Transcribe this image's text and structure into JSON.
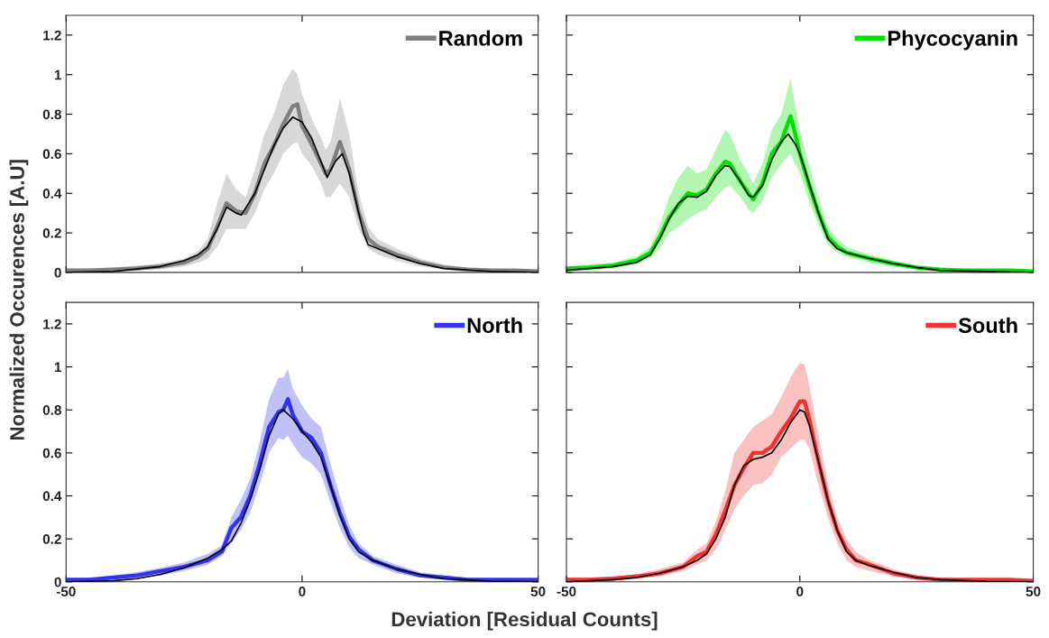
{
  "chart_data": [
    {
      "type": "line",
      "ylabel": "Normalized Occurences [A.U]",
      "xlim": [
        -50,
        50
      ],
      "ylim": [
        0,
        1.3
      ],
      "xticks": [
        -50,
        0,
        50
      ],
      "yticks": [
        0,
        0.2,
        0.4,
        0.6,
        0.8,
        1,
        1.2
      ],
      "tick_labels": "y",
      "legend": "top right",
      "series": [
        {
          "name": "Random",
          "color": "#7f7f7f",
          "x": [
            -50,
            -45,
            -40,
            -35,
            -30,
            -25,
            -22,
            -20,
            -18,
            -16,
            -14,
            -12,
            -10,
            -8,
            -6,
            -4,
            -2,
            -1,
            0,
            2,
            4,
            5,
            6,
            8,
            10,
            12,
            14,
            16,
            20,
            25,
            30,
            35,
            40,
            45,
            50
          ],
          "values": [
            0.01,
            0.01,
            0.015,
            0.02,
            0.03,
            0.05,
            0.08,
            0.12,
            0.23,
            0.35,
            0.31,
            0.3,
            0.4,
            0.55,
            0.64,
            0.75,
            0.84,
            0.85,
            0.74,
            0.65,
            0.55,
            0.5,
            0.52,
            0.66,
            0.52,
            0.3,
            0.17,
            0.13,
            0.09,
            0.05,
            0.025,
            0.015,
            0.01,
            0.01,
            0.005
          ],
          "lower": [
            0,
            0,
            0,
            0.01,
            0.015,
            0.03,
            0.05,
            0.07,
            0.13,
            0.22,
            0.22,
            0.22,
            0.3,
            0.42,
            0.5,
            0.6,
            0.65,
            0.66,
            0.6,
            0.54,
            0.45,
            0.38,
            0.38,
            0.45,
            0.38,
            0.22,
            0.12,
            0.09,
            0.06,
            0.03,
            0.015,
            0.005,
            0,
            0,
            0
          ],
          "upper": [
            0.02,
            0.02,
            0.025,
            0.035,
            0.045,
            0.07,
            0.11,
            0.17,
            0.35,
            0.5,
            0.42,
            0.38,
            0.52,
            0.7,
            0.8,
            0.95,
            1.03,
            1.0,
            0.9,
            0.78,
            0.68,
            0.62,
            0.66,
            0.88,
            0.7,
            0.4,
            0.23,
            0.17,
            0.12,
            0.07,
            0.04,
            0.025,
            0.02,
            0.015,
            0.01
          ]
        },
        {
          "type": "line",
          "color": "#000000",
          "x": [
            -50,
            -40,
            -30,
            -25,
            -22,
            -20,
            -18,
            -16,
            -14,
            -12.9,
            -10,
            -8,
            -6,
            -4,
            -2,
            0,
            2,
            4,
            5,
            5.3,
            7,
            8.5,
            10,
            12,
            13,
            14,
            16,
            20,
            25,
            30,
            40,
            50
          ],
          "values": [
            0,
            0.005,
            0.03,
            0.06,
            0.09,
            0.13,
            0.22,
            0.33,
            0.3,
            0.29,
            0.4,
            0.52,
            0.64,
            0.73,
            0.785,
            0.76,
            0.68,
            0.56,
            0.5,
            0.48,
            0.56,
            0.6,
            0.5,
            0.3,
            0.2,
            0.14,
            0.12,
            0.08,
            0.045,
            0.02,
            0.005,
            0
          ]
        }
      ]
    },
    {
      "type": "line",
      "xlim": [
        -50,
        50
      ],
      "ylim": [
        0,
        1.3
      ],
      "xticks": [
        -50,
        0,
        50
      ],
      "yticks": [
        0,
        0.2,
        0.4,
        0.6,
        0.8,
        1,
        1.2
      ],
      "tick_labels": false,
      "legend": "top right",
      "series": [
        {
          "name": "Phycocyanin",
          "color": "#00e000",
          "x": [
            -50,
            -45,
            -40,
            -35,
            -32,
            -30,
            -28,
            -26,
            -24,
            -22,
            -20,
            -18,
            -16,
            -15,
            -13,
            -11,
            -10,
            -8,
            -6,
            -4,
            -2,
            -1,
            0,
            2,
            4,
            6,
            8,
            10,
            15,
            20,
            25,
            30,
            35,
            40,
            45,
            50
          ],
          "values": [
            0.02,
            0.025,
            0.035,
            0.06,
            0.1,
            0.18,
            0.28,
            0.34,
            0.4,
            0.39,
            0.42,
            0.5,
            0.56,
            0.55,
            0.47,
            0.4,
            0.37,
            0.45,
            0.6,
            0.66,
            0.79,
            0.7,
            0.6,
            0.44,
            0.3,
            0.18,
            0.13,
            0.1,
            0.07,
            0.045,
            0.025,
            0.015,
            0.01,
            0.01,
            0.01,
            0.005
          ],
          "lower": [
            0.005,
            0.01,
            0.02,
            0.04,
            0.07,
            0.12,
            0.2,
            0.23,
            0.27,
            0.3,
            0.32,
            0.38,
            0.43,
            0.44,
            0.39,
            0.32,
            0.3,
            0.36,
            0.48,
            0.55,
            0.6,
            0.55,
            0.5,
            0.36,
            0.24,
            0.14,
            0.1,
            0.08,
            0.05,
            0.03,
            0.015,
            0.005,
            0,
            0,
            0,
            0
          ],
          "upper": [
            0.03,
            0.04,
            0.05,
            0.08,
            0.13,
            0.24,
            0.38,
            0.48,
            0.54,
            0.5,
            0.52,
            0.62,
            0.72,
            0.7,
            0.58,
            0.5,
            0.45,
            0.55,
            0.72,
            0.8,
            0.98,
            0.85,
            0.72,
            0.54,
            0.38,
            0.23,
            0.17,
            0.13,
            0.09,
            0.06,
            0.035,
            0.025,
            0.02,
            0.015,
            0.015,
            0.01
          ]
        },
        {
          "type": "line",
          "color": "#000000",
          "x": [
            -50,
            -40,
            -35,
            -32,
            -30,
            -28,
            -26,
            -24,
            -22,
            -20,
            -18,
            -16,
            -15,
            -13,
            -11,
            -10,
            -8,
            -6,
            -4,
            -2.5,
            -1,
            0,
            2,
            4,
            6,
            8,
            10,
            15,
            20,
            25,
            30,
            40,
            50
          ],
          "values": [
            0.01,
            0.03,
            0.05,
            0.09,
            0.17,
            0.27,
            0.35,
            0.385,
            0.38,
            0.41,
            0.49,
            0.54,
            0.535,
            0.47,
            0.39,
            0.38,
            0.44,
            0.57,
            0.66,
            0.7,
            0.65,
            0.6,
            0.45,
            0.3,
            0.17,
            0.12,
            0.1,
            0.07,
            0.045,
            0.025,
            0.01,
            0.005,
            0
          ]
        }
      ]
    },
    {
      "type": "line",
      "xlabel": "Deviation [Residual Counts]",
      "xlim": [
        -50,
        50
      ],
      "ylim": [
        0,
        1.3
      ],
      "xticks": [
        -50,
        0,
        50
      ],
      "yticks": [
        0,
        0.2,
        0.4,
        0.6,
        0.8,
        1,
        1.2
      ],
      "legend": "top right",
      "series": [
        {
          "name": "North",
          "color": "#3333ee",
          "x": [
            -50,
            -45,
            -40,
            -35,
            -30,
            -25,
            -20,
            -17,
            -15,
            -13,
            -11,
            -9,
            -7,
            -5,
            -4,
            -3,
            -2,
            0,
            2,
            4,
            6,
            8,
            10,
            12,
            15,
            20,
            25,
            30,
            35,
            40,
            45,
            50
          ],
          "values": [
            0.01,
            0.01,
            0.02,
            0.03,
            0.05,
            0.07,
            0.1,
            0.14,
            0.25,
            0.3,
            0.4,
            0.55,
            0.72,
            0.79,
            0.8,
            0.85,
            0.78,
            0.7,
            0.67,
            0.6,
            0.45,
            0.32,
            0.21,
            0.15,
            0.1,
            0.06,
            0.03,
            0.02,
            0.01,
            0.01,
            0.01,
            0.01
          ],
          "lower": [
            0,
            0,
            0.005,
            0.015,
            0.03,
            0.05,
            0.08,
            0.12,
            0.18,
            0.24,
            0.32,
            0.45,
            0.6,
            0.67,
            0.66,
            0.68,
            0.64,
            0.58,
            0.55,
            0.5,
            0.37,
            0.25,
            0.16,
            0.11,
            0.08,
            0.04,
            0.02,
            0.01,
            0,
            0,
            0,
            0
          ],
          "upper": [
            0.02,
            0.02,
            0.03,
            0.045,
            0.065,
            0.09,
            0.13,
            0.17,
            0.3,
            0.38,
            0.48,
            0.65,
            0.85,
            0.95,
            0.95,
            0.99,
            0.9,
            0.82,
            0.76,
            0.72,
            0.55,
            0.4,
            0.26,
            0.18,
            0.12,
            0.08,
            0.045,
            0.03,
            0.02,
            0.015,
            0.015,
            0.015
          ]
        },
        {
          "type": "line",
          "color": "#000000",
          "x": [
            -50,
            -40,
            -35,
            -30,
            -25,
            -20,
            -17,
            -15,
            -13,
            -11,
            -9,
            -7,
            -5,
            -4,
            -2,
            0,
            2,
            4,
            6,
            8,
            10,
            12,
            15,
            20,
            25,
            30,
            40,
            50
          ],
          "values": [
            0,
            0.005,
            0.015,
            0.035,
            0.065,
            0.11,
            0.15,
            0.19,
            0.27,
            0.38,
            0.52,
            0.68,
            0.78,
            0.8,
            0.76,
            0.7,
            0.65,
            0.58,
            0.45,
            0.31,
            0.2,
            0.14,
            0.1,
            0.06,
            0.035,
            0.015,
            0.003,
            0
          ]
        }
      ]
    },
    {
      "type": "line",
      "xlim": [
        -50,
        50
      ],
      "ylim": [
        0,
        1.3
      ],
      "xticks": [
        -50,
        0,
        50
      ],
      "yticks": [
        0,
        0.2,
        0.4,
        0.6,
        0.8,
        1,
        1.2
      ],
      "tick_labels": "x",
      "legend": "top right",
      "series": [
        {
          "name": "South",
          "color": "#ee3333",
          "x": [
            -50,
            -45,
            -40,
            -35,
            -30,
            -25,
            -22,
            -20,
            -18,
            -16,
            -14,
            -12,
            -10,
            -8,
            -6,
            -4,
            -2,
            0,
            1,
            2,
            4,
            6,
            8,
            10,
            12,
            15,
            20,
            25,
            30,
            35,
            40,
            45,
            50
          ],
          "values": [
            0.01,
            0.01,
            0.015,
            0.025,
            0.04,
            0.07,
            0.12,
            0.14,
            0.22,
            0.33,
            0.45,
            0.53,
            0.6,
            0.6,
            0.63,
            0.7,
            0.76,
            0.84,
            0.84,
            0.76,
            0.56,
            0.38,
            0.24,
            0.15,
            0.1,
            0.08,
            0.04,
            0.02,
            0.01,
            0.01,
            0.01,
            0.01,
            0.005
          ],
          "lower": [
            0,
            0,
            0.005,
            0.015,
            0.025,
            0.05,
            0.08,
            0.1,
            0.15,
            0.24,
            0.34,
            0.4,
            0.45,
            0.46,
            0.5,
            0.58,
            0.62,
            0.66,
            0.66,
            0.62,
            0.45,
            0.3,
            0.18,
            0.1,
            0.07,
            0.05,
            0.025,
            0.01,
            0,
            0,
            0,
            0,
            0
          ],
          "upper": [
            0.02,
            0.02,
            0.025,
            0.035,
            0.06,
            0.09,
            0.15,
            0.18,
            0.28,
            0.42,
            0.6,
            0.66,
            0.72,
            0.75,
            0.78,
            0.86,
            0.95,
            1.02,
            1.01,
            0.92,
            0.68,
            0.46,
            0.3,
            0.2,
            0.14,
            0.1,
            0.06,
            0.03,
            0.02,
            0.015,
            0.015,
            0.015,
            0.01
          ]
        },
        {
          "type": "line",
          "color": "#000000",
          "x": [
            -50,
            -40,
            -35,
            -30,
            -25,
            -22,
            -20,
            -18,
            -16,
            -14,
            -12,
            -10,
            -8,
            -6,
            -4,
            -2,
            0,
            1,
            2,
            4,
            6,
            8,
            10,
            12,
            15,
            20,
            25,
            30,
            40,
            50
          ],
          "values": [
            0,
            0.01,
            0.02,
            0.04,
            0.07,
            0.1,
            0.13,
            0.2,
            0.3,
            0.45,
            0.54,
            0.57,
            0.58,
            0.6,
            0.66,
            0.74,
            0.8,
            0.79,
            0.73,
            0.56,
            0.38,
            0.24,
            0.14,
            0.1,
            0.075,
            0.045,
            0.02,
            0.01,
            0.002,
            0
          ]
        }
      ]
    }
  ]
}
